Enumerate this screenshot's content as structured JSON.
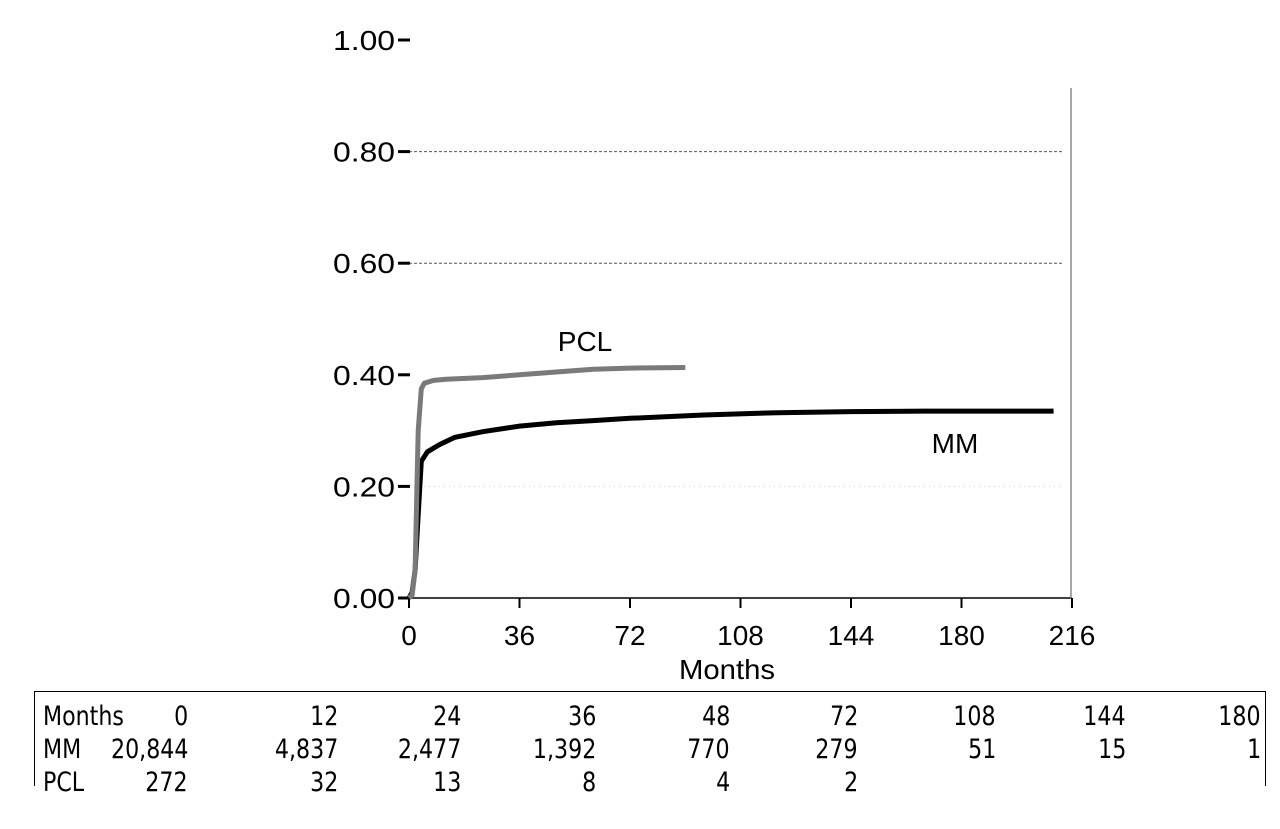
{
  "chart_data": {
    "type": "line",
    "xlabel": "Months",
    "ylabel": "",
    "xlim": [
      0,
      216
    ],
    "ylim": [
      0,
      1.0
    ],
    "x_ticks": [
      "0",
      "36",
      "72",
      "108",
      "144",
      "180",
      "216"
    ],
    "y_ticks": [
      "0.00",
      "0.20",
      "0.40",
      "0.60",
      "0.80",
      "1.00"
    ],
    "grid": "horizontal dashed at 0.60 and 0.80, faint dotted at 0.20",
    "series": [
      {
        "name": "PCL",
        "color": "#7a7a7a",
        "points": [
          [
            0,
            0
          ],
          [
            1,
            0.005
          ],
          [
            2,
            0.05
          ],
          [
            3,
            0.3
          ],
          [
            4,
            0.375
          ],
          [
            5,
            0.385
          ],
          [
            8,
            0.39
          ],
          [
            12,
            0.392
          ],
          [
            24,
            0.395
          ],
          [
            36,
            0.4
          ],
          [
            48,
            0.405
          ],
          [
            60,
            0.41
          ],
          [
            72,
            0.412
          ],
          [
            90,
            0.413
          ]
        ]
      },
      {
        "name": "MM",
        "color": "#000000",
        "points": [
          [
            0,
            0
          ],
          [
            1,
            0.01
          ],
          [
            2,
            0.05
          ],
          [
            3,
            0.15
          ],
          [
            4,
            0.245
          ],
          [
            6,
            0.262
          ],
          [
            10,
            0.275
          ],
          [
            15,
            0.288
          ],
          [
            24,
            0.298
          ],
          [
            36,
            0.308
          ],
          [
            48,
            0.314
          ],
          [
            60,
            0.318
          ],
          [
            72,
            0.322
          ],
          [
            96,
            0.328
          ],
          [
            120,
            0.332
          ],
          [
            144,
            0.334
          ],
          [
            168,
            0.335
          ],
          [
            192,
            0.335
          ],
          [
            210,
            0.335
          ]
        ]
      }
    ]
  },
  "risk_table": {
    "rows": [
      {
        "label": "Months",
        "values": [
          "0",
          "12",
          "24",
          "36",
          "48",
          "72",
          "108",
          "144",
          "180"
        ]
      },
      {
        "label": "MM",
        "values": [
          "20,844",
          "4,837",
          "2,477",
          "1,392",
          "770",
          "279",
          "51",
          "15",
          "1"
        ]
      },
      {
        "label": "PCL",
        "values": [
          "272",
          "32",
          "13",
          "8",
          "4",
          "2",
          "",
          "",
          ""
        ]
      }
    ]
  }
}
